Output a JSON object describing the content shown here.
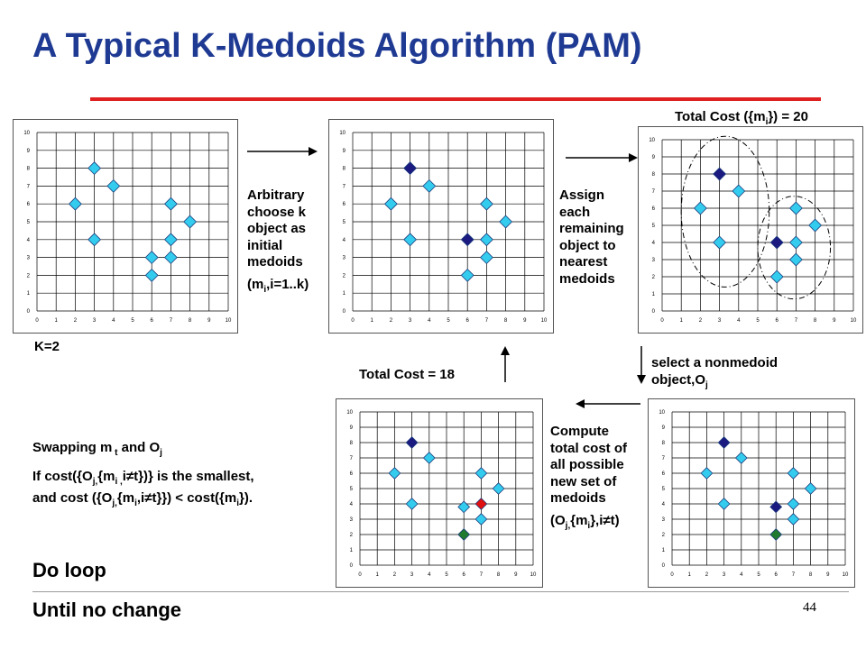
{
  "title": "A Typical K-Medoids Algorithm (PAM)",
  "page_number": "44",
  "labels": {
    "k": "K=2",
    "step1_lines": [
      "Arbitrary",
      "choose k",
      "object as",
      "initial",
      "medoids"
    ],
    "step1_formula": "(m",
    "step1_formula_sub": "i",
    "step1_formula_end": ",i=1..k)",
    "step2_lines": [
      "Assign",
      "each",
      "remaining",
      "object to",
      "nearest",
      "medoids"
    ],
    "cost20_prefix": "Total Cost ({m",
    "cost20_sub": "i",
    "cost20_suffix": "}) = 20",
    "select_line1": "select a nonmedoid",
    "select_line2": "object,O",
    "select_sub": "j",
    "cost18": "Total Cost = 18",
    "compute_lines": [
      "Compute",
      "total cost of",
      "all possible",
      "new set of",
      "medoids"
    ],
    "compute_formula_a": "(O",
    "compute_formula_sub1": "j,",
    "compute_formula_b": "{m",
    "compute_formula_sub2": "i",
    "compute_formula_c": "},i≠t)",
    "swap_a": "Swapping m",
    "swap_sub1": " t",
    "swap_b": " and O",
    "swap_sub2": "j",
    "cond_a": "If cost({O",
    "cond_sub1": "j,",
    "cond_b": "{m",
    "cond_sub2": "i ,",
    "cond_c": "i≠t})} is the smallest,",
    "cond2_a": "and cost ({O",
    "cond2_sub1": "j,",
    "cond2_b": "{m",
    "cond2_sub2": "i",
    "cond2_c": ",i≠t}})   < cost({m",
    "cond2_sub3": "i",
    "cond2_d": "}).",
    "do_loop": "Do loop",
    "until": "Until no change"
  },
  "colors": {
    "title": "#1f3a93",
    "rule": "#e02020",
    "point": "#33ccee",
    "medoid": "#1a1a80",
    "swap_out": "#e01010",
    "swap_in": "#207a30"
  },
  "chart_data": [
    {
      "type": "scatter",
      "name": "initial",
      "xlim": [
        0,
        10
      ],
      "ylim": [
        0,
        10
      ],
      "xticks": [
        "0",
        "1",
        "2",
        "3",
        "4",
        "5",
        "6",
        "7",
        "8",
        "9",
        "10"
      ],
      "yticks": [
        "0",
        "1",
        "2",
        "3",
        "4",
        "5",
        "6",
        "7",
        "8",
        "9",
        "10"
      ],
      "grid": true,
      "points": [
        {
          "x": 2,
          "y": 6,
          "kind": "point"
        },
        {
          "x": 3,
          "y": 8,
          "kind": "point"
        },
        {
          "x": 3,
          "y": 4,
          "kind": "point"
        },
        {
          "x": 4,
          "y": 7,
          "kind": "point"
        },
        {
          "x": 6,
          "y": 2,
          "kind": "point"
        },
        {
          "x": 6,
          "y": 3,
          "kind": "point"
        },
        {
          "x": 7,
          "y": 6,
          "kind": "point"
        },
        {
          "x": 7,
          "y": 4,
          "kind": "point"
        },
        {
          "x": 7,
          "y": 3,
          "kind": "point"
        },
        {
          "x": 8,
          "y": 5,
          "kind": "point"
        }
      ]
    },
    {
      "type": "scatter",
      "name": "medoids-chosen",
      "xlim": [
        0,
        10
      ],
      "ylim": [
        0,
        10
      ],
      "xticks": [
        "0",
        "1",
        "2",
        "3",
        "4",
        "5",
        "6",
        "7",
        "8",
        "9",
        "10"
      ],
      "yticks": [
        "0",
        "1",
        "2",
        "3",
        "4",
        "5",
        "6",
        "7",
        "8",
        "9",
        "10"
      ],
      "grid": true,
      "points": [
        {
          "x": 2,
          "y": 6,
          "kind": "point"
        },
        {
          "x": 3,
          "y": 8,
          "kind": "medoid"
        },
        {
          "x": 3,
          "y": 4,
          "kind": "point"
        },
        {
          "x": 4,
          "y": 7,
          "kind": "point"
        },
        {
          "x": 6,
          "y": 2,
          "kind": "point"
        },
        {
          "x": 6,
          "y": 4,
          "kind": "medoid"
        },
        {
          "x": 7,
          "y": 6,
          "kind": "point"
        },
        {
          "x": 7,
          "y": 4,
          "kind": "point"
        },
        {
          "x": 7,
          "y": 3,
          "kind": "point"
        },
        {
          "x": 8,
          "y": 5,
          "kind": "point"
        }
      ]
    },
    {
      "type": "scatter",
      "name": "assigned",
      "xlim": [
        0,
        10
      ],
      "ylim": [
        0,
        10
      ],
      "xticks": [
        "0",
        "1",
        "2",
        "3",
        "4",
        "5",
        "6",
        "7",
        "8",
        "9",
        "10"
      ],
      "yticks": [
        "0",
        "1",
        "2",
        "3",
        "4",
        "5",
        "6",
        "7",
        "8",
        "9",
        "10"
      ],
      "grid": true,
      "clusters": [
        {
          "cx": 3.3,
          "cy": 5.8,
          "rx": 2.3,
          "ry": 4.4
        },
        {
          "cx": 6.9,
          "cy": 3.7,
          "rx": 1.9,
          "ry": 3.0
        }
      ],
      "points": [
        {
          "x": 2,
          "y": 6,
          "kind": "point"
        },
        {
          "x": 3,
          "y": 8,
          "kind": "medoid"
        },
        {
          "x": 3,
          "y": 4,
          "kind": "point"
        },
        {
          "x": 4,
          "y": 7,
          "kind": "point"
        },
        {
          "x": 6,
          "y": 2,
          "kind": "point"
        },
        {
          "x": 6,
          "y": 4,
          "kind": "medoid"
        },
        {
          "x": 7,
          "y": 6,
          "kind": "point"
        },
        {
          "x": 7,
          "y": 4,
          "kind": "point"
        },
        {
          "x": 7,
          "y": 3,
          "kind": "point"
        },
        {
          "x": 8,
          "y": 5,
          "kind": "point"
        }
      ]
    },
    {
      "type": "scatter",
      "name": "select-nonmedoid",
      "xlim": [
        0,
        10
      ],
      "ylim": [
        0,
        10
      ],
      "xticks": [
        "0",
        "1",
        "2",
        "3",
        "4",
        "5",
        "6",
        "7",
        "8",
        "9",
        "10"
      ],
      "yticks": [
        "0",
        "1",
        "2",
        "3",
        "4",
        "5",
        "6",
        "7",
        "8",
        "9",
        "10"
      ],
      "grid": true,
      "points": [
        {
          "x": 2,
          "y": 6,
          "kind": "point"
        },
        {
          "x": 3,
          "y": 8,
          "kind": "medoid"
        },
        {
          "x": 3,
          "y": 4,
          "kind": "point"
        },
        {
          "x": 4,
          "y": 7,
          "kind": "point"
        },
        {
          "x": 6,
          "y": 2,
          "kind": "swap_in"
        },
        {
          "x": 6,
          "y": 3.8,
          "kind": "medoid"
        },
        {
          "x": 7,
          "y": 6,
          "kind": "point"
        },
        {
          "x": 7,
          "y": 4,
          "kind": "point"
        },
        {
          "x": 7,
          "y": 3,
          "kind": "point"
        },
        {
          "x": 8,
          "y": 5,
          "kind": "point"
        }
      ]
    },
    {
      "type": "scatter",
      "name": "swapped",
      "xlim": [
        0,
        10
      ],
      "ylim": [
        0,
        10
      ],
      "xticks": [
        "0",
        "1",
        "2",
        "3",
        "4",
        "5",
        "6",
        "7",
        "8",
        "9",
        "10"
      ],
      "yticks": [
        "0",
        "1",
        "2",
        "3",
        "4",
        "5",
        "6",
        "7",
        "8",
        "9",
        "10"
      ],
      "grid": true,
      "points": [
        {
          "x": 2,
          "y": 6,
          "kind": "point"
        },
        {
          "x": 3,
          "y": 8,
          "kind": "medoid"
        },
        {
          "x": 3,
          "y": 4,
          "kind": "point"
        },
        {
          "x": 4,
          "y": 7,
          "kind": "point"
        },
        {
          "x": 6,
          "y": 2,
          "kind": "swap_in"
        },
        {
          "x": 6,
          "y": 3.8,
          "kind": "point"
        },
        {
          "x": 7,
          "y": 6,
          "kind": "point"
        },
        {
          "x": 7,
          "y": 4,
          "kind": "swap_out"
        },
        {
          "x": 7,
          "y": 3,
          "kind": "point"
        },
        {
          "x": 8,
          "y": 5,
          "kind": "point"
        }
      ]
    }
  ]
}
